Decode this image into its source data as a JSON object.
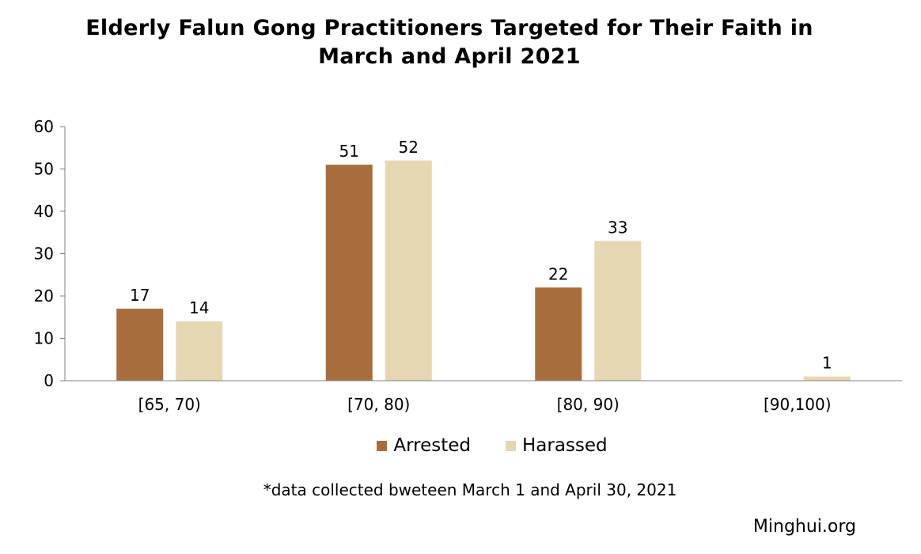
{
  "chart_data": {
    "type": "bar",
    "title_lines": [
      "Elderly Falun Gong Practitioners Targeted for Their Faith in",
      "March and April 2021"
    ],
    "categories": [
      "[65, 70)",
      "[70, 80)",
      "[80, 90)",
      "[90,100)"
    ],
    "series": [
      {
        "name": "Arrested",
        "color": "#A86D3C",
        "values": [
          17,
          51,
          22,
          null
        ]
      },
      {
        "name": "Harassed",
        "color": "#E6D7B3",
        "values": [
          14,
          52,
          33,
          1
        ]
      }
    ],
    "data_labels": [
      [
        "17",
        "51",
        "22",
        ""
      ],
      [
        "14",
        "52",
        "33",
        "1"
      ]
    ],
    "ylim": [
      0,
      60
    ],
    "yticks": [
      0,
      10,
      20,
      30,
      40,
      50,
      60
    ],
    "grid": false,
    "legend": "bottom-center",
    "axis_color": "#808080"
  },
  "footnote": "*data collected bweteen March 1 and April 30, 2021",
  "source": "Minghui.org"
}
